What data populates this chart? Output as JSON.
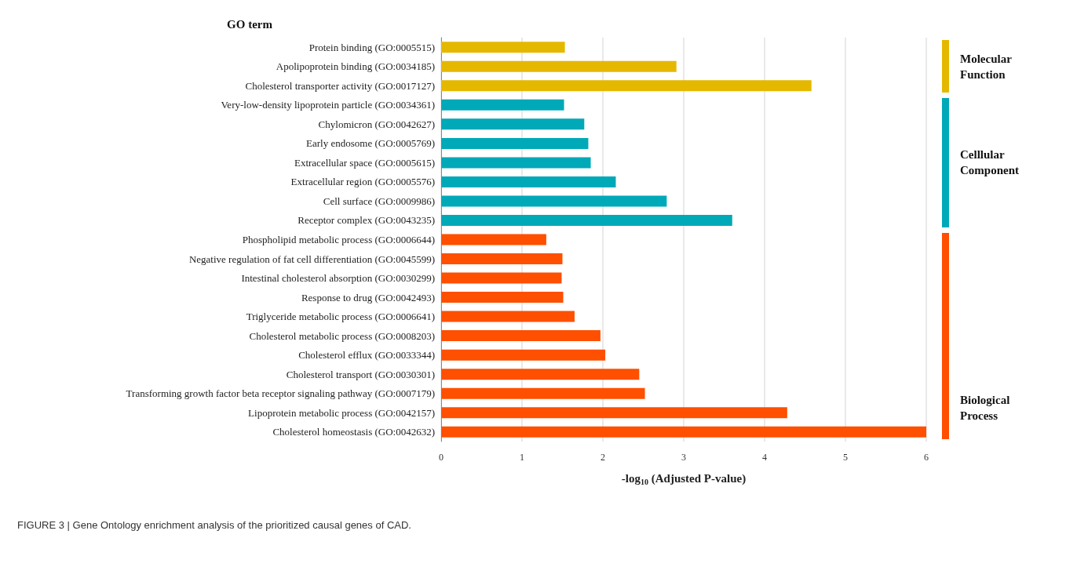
{
  "chart_data": {
    "type": "bar",
    "orientation": "horizontal",
    "ylabel": "GO term",
    "xlabel": "-log$_{10}$ (Adjusted P-value)",
    "categories": [
      "Protein binding (GO:0005515)",
      "Apolipoprotein binding (GO:0034185)",
      "Cholesterol transporter activity (GO:0017127)",
      "Very-low-density lipoprotein particle (GO:0034361)",
      "Chylomicron (GO:0042627)",
      "Early endosome (GO:0005769)",
      "Extracellular space (GO:0005615)",
      "Extracellular region (GO:0005576)",
      "Cell surface (GO:0009986)",
      "Receptor complex (GO:0043235)",
      "Phospholipid metabolic process (GO:0006644)",
      "Negative regulation of fat cell differentiation (GO:0045599)",
      "Intestinal cholesterol absorption (GO:0030299)",
      "Response to drug (GO:0042493)",
      "Triglyceride metabolic process (GO:0006641)",
      "Cholesterol metabolic process (GO:0008203)",
      "Cholesterol efflux (GO:0033344)",
      "Cholesterol transport (GO:0030301)",
      "Transforming growth factor beta receptor signaling pathway (GO:0007179)",
      "Lipoprotein metabolic process (GO:0042157)",
      "Cholesterol homeostasis (GO:0042632)"
    ],
    "values": [
      1.53,
      2.91,
      4.58,
      1.52,
      1.77,
      1.82,
      1.85,
      2.16,
      2.79,
      3.6,
      1.3,
      1.5,
      1.49,
      1.51,
      1.65,
      1.97,
      2.03,
      2.45,
      2.52,
      4.28,
      6.0
    ],
    "colors": [
      "#e5b800",
      "#e5b800",
      "#e5b800",
      "#00a9b8",
      "#00a9b8",
      "#00a9b8",
      "#00a9b8",
      "#00a9b8",
      "#00a9b8",
      "#00a9b8",
      "#ff4f00",
      "#ff4f00",
      "#ff4f00",
      "#ff4f00",
      "#ff4f00",
      "#ff4f00",
      "#ff4f00",
      "#ff4f00",
      "#ff4f00",
      "#ff4f00",
      "#ff4f00"
    ],
    "xlim": [
      0,
      6
    ],
    "xticks": [
      0,
      1,
      2,
      3,
      4,
      5,
      6
    ],
    "grid": "x",
    "annotations": [
      "Molecular\nFunction",
      "Celllular\nComponent",
      "Biological\nProcess",
      "FIGURE 3 | Gene Ontology enrichment analysis of the prioritized causal genes of CAD."
    ]
  }
}
